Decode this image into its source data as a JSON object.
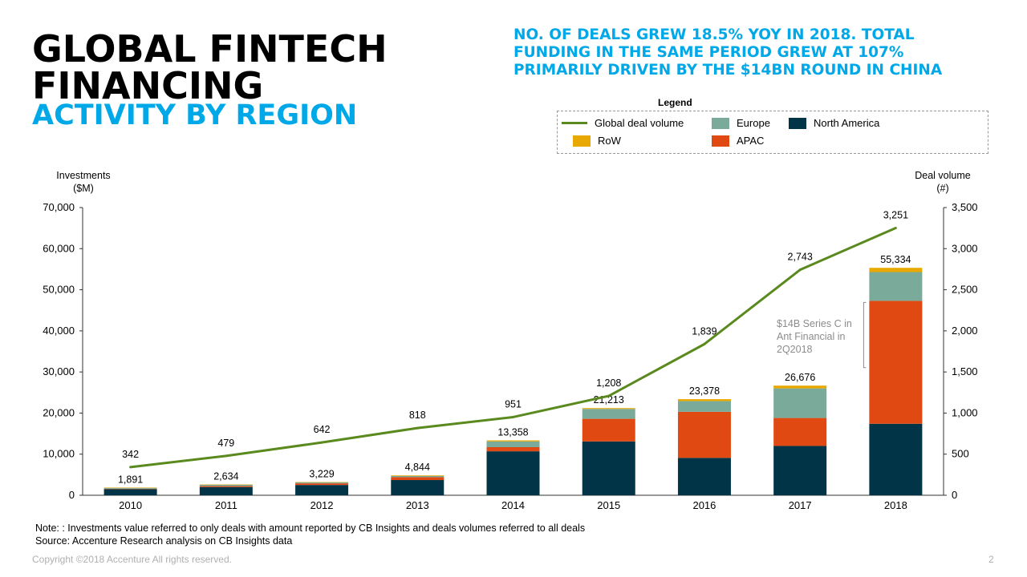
{
  "title": {
    "line1": "GLOBAL FINTECH",
    "line2": "FINANCING",
    "subtitle": "ACTIVITY BY REGION"
  },
  "headline": "NO. OF DEALS GREW 18.5% YOY IN 2018. TOTAL FUNDING IN THE SAME PERIOD GREW AT 107% PRIMARILY DRIVEN BY THE $14BN ROUND IN CHINA",
  "legend": {
    "title": "Legend",
    "items": [
      {
        "label": "Global deal volume",
        "color": "#5a8a1e",
        "kind": "line"
      },
      {
        "label": "Europe",
        "color": "#7aab9a",
        "kind": "box"
      },
      {
        "label": "North America",
        "color": "#003446",
        "kind": "box"
      },
      {
        "label": "RoW",
        "color": "#e8a800",
        "kind": "box"
      },
      {
        "label": "APAC",
        "color": "#e04a12",
        "kind": "box"
      }
    ]
  },
  "axes": {
    "left_title_line1": "Investments",
    "left_title_line2": "($M)",
    "right_title_line1": "Deal volume",
    "right_title_line2": "(#)"
  },
  "annotation": "$14B Series C in Ant Financial in 2Q2018",
  "notes": {
    "line1": "Note: : Investments value referred to only deals with amount reported by CB Insights and deals volumes referred to all deals",
    "line2": "Source: Accenture Research analysis on CB Insights data"
  },
  "footer": {
    "copyright": "Copyright ©2018 Accenture All rights reserved.",
    "page": "2"
  },
  "chart_data": {
    "type": "bar",
    "stacked": true,
    "title": "Global Fintech Financing Activity by Region",
    "categories": [
      "2010",
      "2011",
      "2012",
      "2013",
      "2014",
      "2015",
      "2016",
      "2017",
      "2018"
    ],
    "ylim_left": [
      0,
      70000
    ],
    "yticks_left": [
      0,
      10000,
      20000,
      30000,
      40000,
      50000,
      60000,
      70000
    ],
    "ytick_labels_left": [
      "0",
      "10,000",
      "20,000",
      "30,000",
      "40,000",
      "50,000",
      "60,000",
      "70,000"
    ],
    "ylim_right": [
      0,
      3500
    ],
    "yticks_right": [
      0,
      500,
      1000,
      1500,
      2000,
      2500,
      3000,
      3500
    ],
    "ytick_labels_right": [
      "0",
      "500",
      "1,000",
      "1,500",
      "2,000",
      "2,500",
      "3,000",
      "3,500"
    ],
    "series": [
      {
        "name": "North America",
        "color": "#003446",
        "values": [
          1500,
          2000,
          2500,
          3700,
          10700,
          13100,
          9100,
          12000,
          17400
        ]
      },
      {
        "name": "APAC",
        "color": "#e04a12",
        "values": [
          100,
          250,
          400,
          700,
          1000,
          5500,
          11200,
          6800,
          29900
        ]
      },
      {
        "name": "Europe",
        "color": "#7aab9a",
        "values": [
          200,
          300,
          250,
          300,
          1400,
          2400,
          2600,
          7200,
          7000
        ]
      },
      {
        "name": "RoW",
        "color": "#e8a800",
        "values": [
          91,
          84,
          79,
          144,
          258,
          213,
          478,
          676,
          1034
        ]
      }
    ],
    "totals": [
      1891,
      2634,
      3229,
      4844,
      13358,
      21213,
      23378,
      26676,
      55334
    ],
    "total_labels": [
      "1,891",
      "2,634",
      "3,229",
      "4,844",
      "13,358",
      "21,213",
      "23,378",
      "26,676",
      "55,334"
    ],
    "line": {
      "name": "Global deal volume",
      "axis": "right",
      "color": "#5a8a1e",
      "values": [
        342,
        479,
        642,
        818,
        951,
        1208,
        1839,
        2743,
        3251
      ],
      "labels": [
        "342",
        "479",
        "642",
        "818",
        "951",
        "1,208",
        "1,839",
        "2,743",
        "3,251"
      ]
    }
  }
}
